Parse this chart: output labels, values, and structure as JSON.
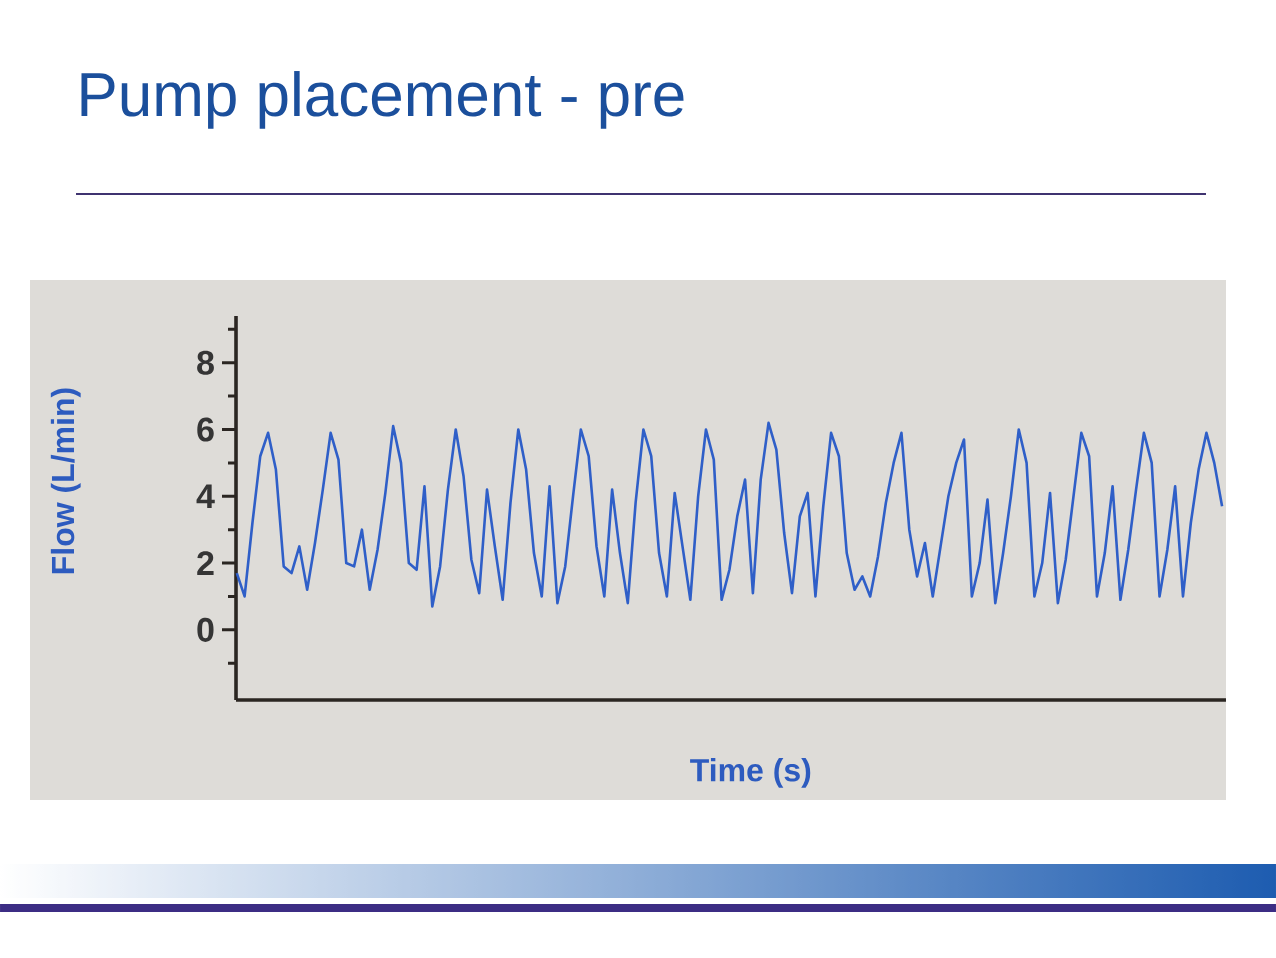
{
  "chart_data": {
    "type": "line",
    "title": "Pump placement - pre",
    "xlabel": "Time (s)",
    "ylabel": "Flow (L/min)",
    "categories": [
      null,
      null,
      null,
      null,
      null,
      null,
      null,
      null,
      null,
      null,
      null,
      null,
      null,
      null,
      null,
      null,
      null,
      null,
      null,
      null,
      null,
      null,
      null,
      null,
      null,
      null,
      null,
      null,
      null,
      null,
      null,
      null,
      null,
      null,
      null,
      null,
      null,
      null,
      null,
      null,
      null,
      null,
      null,
      null,
      null,
      null,
      null,
      null,
      null,
      null,
      null,
      null,
      null,
      null,
      null,
      null,
      null,
      null,
      null,
      null,
      null,
      null,
      null,
      null,
      null,
      null,
      null,
      null,
      null,
      null,
      null,
      null,
      null,
      null,
      null,
      null,
      null,
      null,
      null,
      null,
      null,
      null,
      null,
      null,
      null,
      null,
      null,
      null,
      null,
      null,
      null,
      null,
      null,
      null,
      null,
      null,
      null,
      null,
      null,
      null,
      null,
      null,
      null,
      null,
      null,
      null,
      null,
      null,
      null,
      null,
      null,
      null,
      null,
      null,
      null,
      null,
      null,
      null,
      null,
      null,
      null,
      null,
      null,
      null,
      null,
      null,
      null
    ],
    "series": [
      {
        "color": "#2f5fc8",
        "values": [
          1.7,
          1.0,
          3.2,
          5.2,
          5.9,
          4.8,
          1.9,
          1.7,
          2.5,
          1.2,
          2.6,
          4.2,
          5.9,
          5.1,
          2.0,
          1.9,
          3.0,
          1.2,
          2.4,
          4.1,
          6.1,
          5.0,
          2.0,
          1.8,
          4.3,
          0.7,
          1.9,
          4.2,
          6.0,
          4.6,
          2.1,
          1.1,
          4.2,
          2.5,
          0.9,
          3.8,
          6.0,
          4.8,
          2.3,
          1.0,
          4.3,
          0.8,
          1.9,
          4.0,
          6.0,
          5.2,
          2.5,
          1.0,
          4.2,
          2.3,
          0.8,
          3.8,
          6.0,
          5.2,
          2.3,
          1.0,
          4.1,
          2.5,
          0.9,
          4.0,
          6.0,
          5.1,
          0.9,
          1.8,
          3.4,
          4.5,
          1.1,
          4.5,
          6.2,
          5.4,
          2.9,
          1.1,
          3.4,
          4.1,
          1.0,
          3.7,
          5.9,
          5.2,
          2.3,
          1.2,
          1.6,
          1.0,
          2.2,
          3.8,
          5.0,
          5.9,
          3.0,
          1.6,
          2.6,
          1.0,
          2.5,
          4.0,
          5.0,
          5.7,
          1.0,
          2.0,
          3.9,
          0.8,
          2.3,
          4.0,
          6.0,
          5.0,
          1.0,
          2.0,
          4.1,
          0.8,
          2.1,
          4.0,
          5.9,
          5.2,
          1.0,
          2.3,
          4.3,
          0.9,
          2.4,
          4.2,
          5.9,
          5.0,
          1.0,
          2.4,
          4.3,
          1.0,
          3.2,
          4.8,
          5.9,
          5.0,
          3.7
        ]
      }
    ],
    "ylim": [
      -2.1,
      9.4
    ],
    "yticks": [
      {
        "value": -1,
        "label": null
      },
      0,
      {
        "value": 1,
        "label": null
      },
      2,
      {
        "value": 3,
        "label": null
      },
      4,
      {
        "value": 5,
        "label": null
      },
      6,
      {
        "value": 7,
        "label": null
      },
      8,
      {
        "value": 9,
        "label": null
      }
    ],
    "tick_labels": "y",
    "marker": "none",
    "line_style": "solid"
  }
}
